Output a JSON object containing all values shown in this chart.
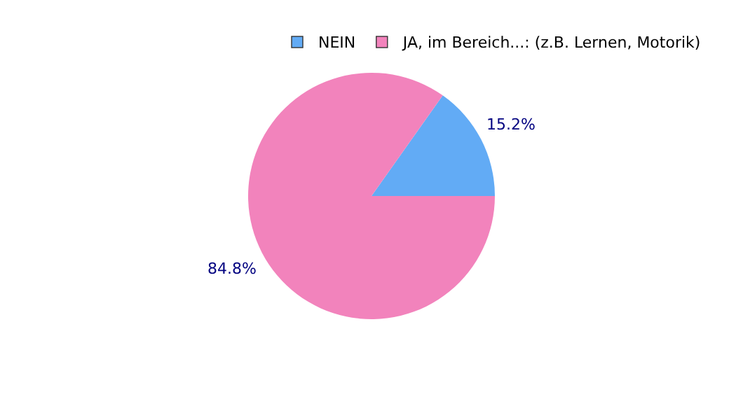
{
  "chart_data": {
    "type": "pie",
    "categories": [
      "NEIN",
      "JA, im Bereich...: (z.B. Lernen, Motorik)"
    ],
    "values": [
      15.2,
      84.8
    ],
    "colors": [
      "#62abf5",
      "#f283bc"
    ],
    "value_labels": [
      "15.2%",
      "84.8%"
    ],
    "legend": "top right"
  }
}
